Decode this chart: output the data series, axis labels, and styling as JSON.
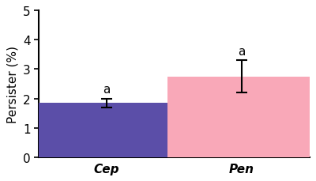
{
  "categories": [
    "Cep",
    "Pen"
  ],
  "values": [
    1.85,
    2.75
  ],
  "errors": [
    0.15,
    0.55
  ],
  "bar_colors": [
    "#5B4EA8",
    "#F9A8B8"
  ],
  "ylabel": "Persister (%)",
  "ylim": [
    0,
    5
  ],
  "yticks": [
    0,
    1,
    2,
    3,
    4,
    5
  ],
  "significance_labels": [
    "a",
    "a"
  ],
  "sig_fontsize": 11,
  "tick_label_fontsize": 11,
  "ylabel_fontsize": 11,
  "bar_width": 0.55,
  "x_positions": [
    0.25,
    0.75
  ],
  "xlim": [
    0.0,
    1.0
  ],
  "error_capsize": 5,
  "error_color": "black",
  "error_linewidth": 1.5,
  "background_color": "#ffffff"
}
